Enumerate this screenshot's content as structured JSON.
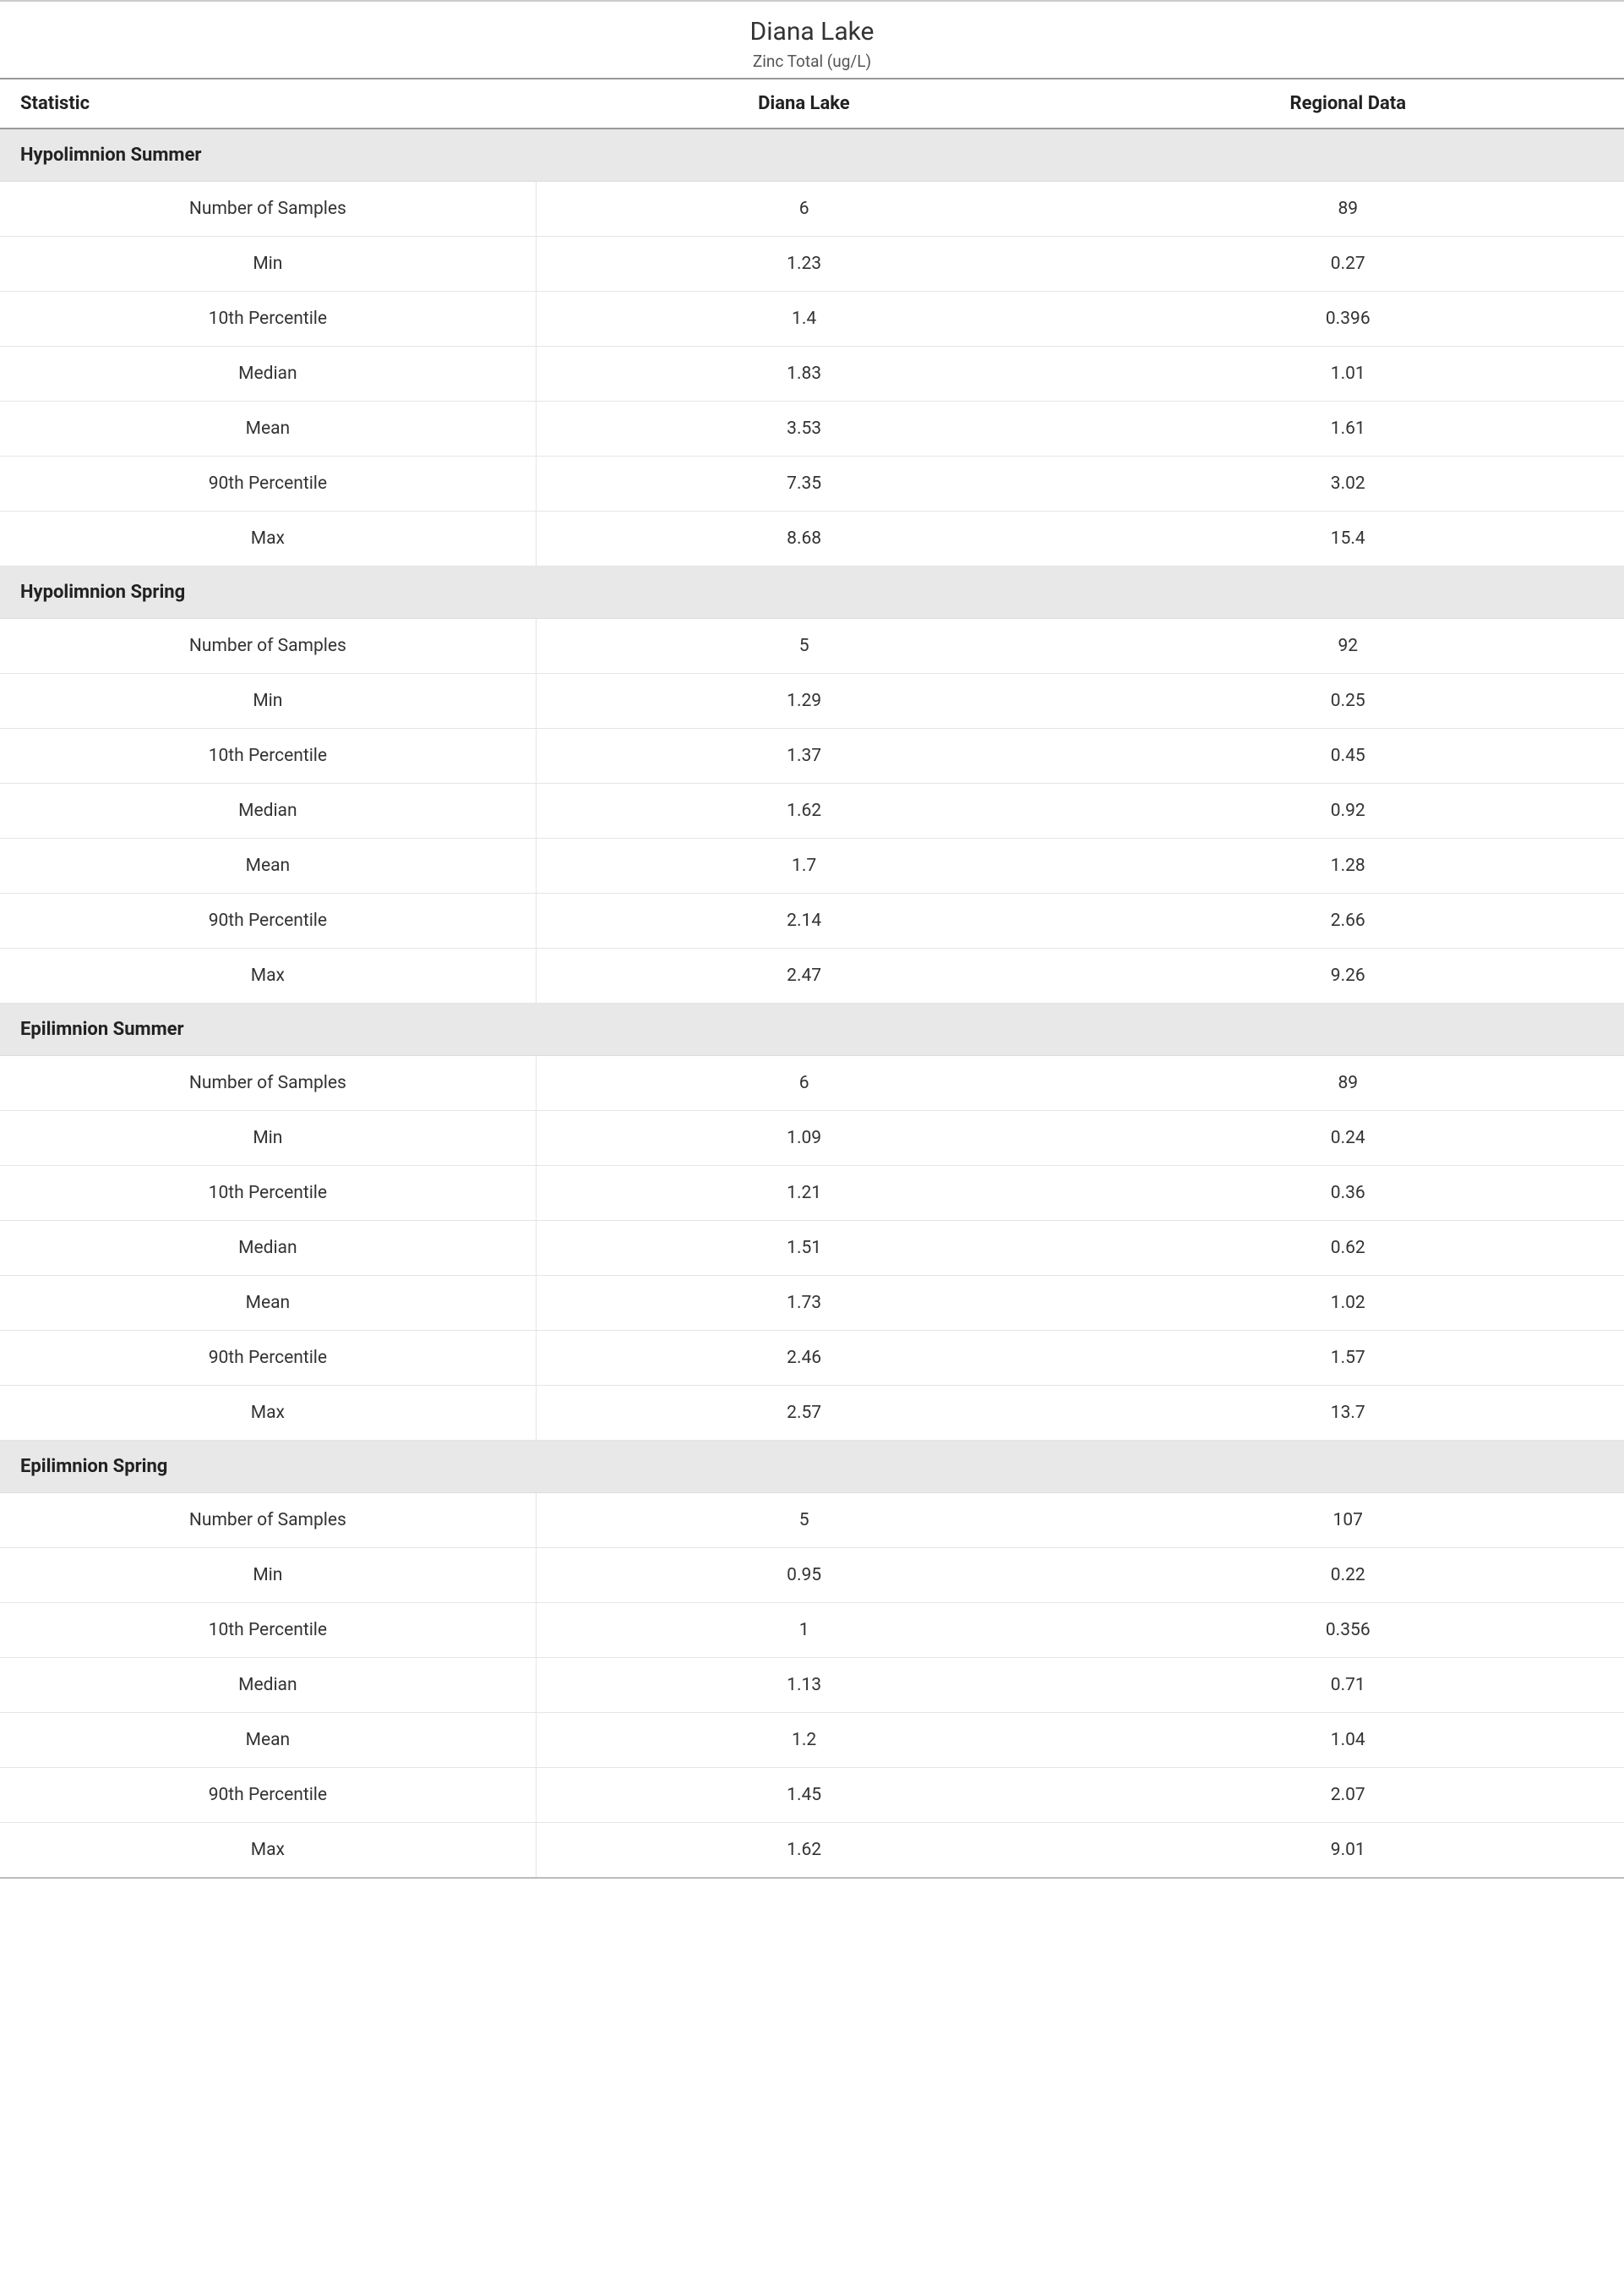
{
  "header": {
    "title": "Diana Lake",
    "subtitle": "Zinc Total (ug/L)"
  },
  "columns": {
    "stat": "Statistic",
    "col1": "Diana Lake",
    "col2": "Regional Data"
  },
  "styling": {
    "type": "table",
    "background_color": "#ffffff",
    "text_color": "#333333",
    "section_bg": "#e8e8e8",
    "border_color": "#e5e5e5",
    "header_border": "#999999",
    "title_fontsize": 30,
    "subtitle_fontsize": 19,
    "header_fontsize": 22,
    "cell_fontsize": 21,
    "font_family": "Segoe UI"
  },
  "sections": [
    {
      "name": "Hypolimnion Summer",
      "rows": [
        {
          "stat": "Number of Samples",
          "v1": "6",
          "v2": "89"
        },
        {
          "stat": "Min",
          "v1": "1.23",
          "v2": "0.27"
        },
        {
          "stat": "10th Percentile",
          "v1": "1.4",
          "v2": "0.396"
        },
        {
          "stat": "Median",
          "v1": "1.83",
          "v2": "1.01"
        },
        {
          "stat": "Mean",
          "v1": "3.53",
          "v2": "1.61"
        },
        {
          "stat": "90th Percentile",
          "v1": "7.35",
          "v2": "3.02"
        },
        {
          "stat": "Max",
          "v1": "8.68",
          "v2": "15.4"
        }
      ]
    },
    {
      "name": "Hypolimnion Spring",
      "rows": [
        {
          "stat": "Number of Samples",
          "v1": "5",
          "v2": "92"
        },
        {
          "stat": "Min",
          "v1": "1.29",
          "v2": "0.25"
        },
        {
          "stat": "10th Percentile",
          "v1": "1.37",
          "v2": "0.45"
        },
        {
          "stat": "Median",
          "v1": "1.62",
          "v2": "0.92"
        },
        {
          "stat": "Mean",
          "v1": "1.7",
          "v2": "1.28"
        },
        {
          "stat": "90th Percentile",
          "v1": "2.14",
          "v2": "2.66"
        },
        {
          "stat": "Max",
          "v1": "2.47",
          "v2": "9.26"
        }
      ]
    },
    {
      "name": "Epilimnion Summer",
      "rows": [
        {
          "stat": "Number of Samples",
          "v1": "6",
          "v2": "89"
        },
        {
          "stat": "Min",
          "v1": "1.09",
          "v2": "0.24"
        },
        {
          "stat": "10th Percentile",
          "v1": "1.21",
          "v2": "0.36"
        },
        {
          "stat": "Median",
          "v1": "1.51",
          "v2": "0.62"
        },
        {
          "stat": "Mean",
          "v1": "1.73",
          "v2": "1.02"
        },
        {
          "stat": "90th Percentile",
          "v1": "2.46",
          "v2": "1.57"
        },
        {
          "stat": "Max",
          "v1": "2.57",
          "v2": "13.7"
        }
      ]
    },
    {
      "name": "Epilimnion Spring",
      "rows": [
        {
          "stat": "Number of Samples",
          "v1": "5",
          "v2": "107"
        },
        {
          "stat": "Min",
          "v1": "0.95",
          "v2": "0.22"
        },
        {
          "stat": "10th Percentile",
          "v1": "1",
          "v2": "0.356"
        },
        {
          "stat": "Median",
          "v1": "1.13",
          "v2": "0.71"
        },
        {
          "stat": "Mean",
          "v1": "1.2",
          "v2": "1.04"
        },
        {
          "stat": "90th Percentile",
          "v1": "1.45",
          "v2": "2.07"
        },
        {
          "stat": "Max",
          "v1": "1.62",
          "v2": "9.01"
        }
      ]
    }
  ]
}
